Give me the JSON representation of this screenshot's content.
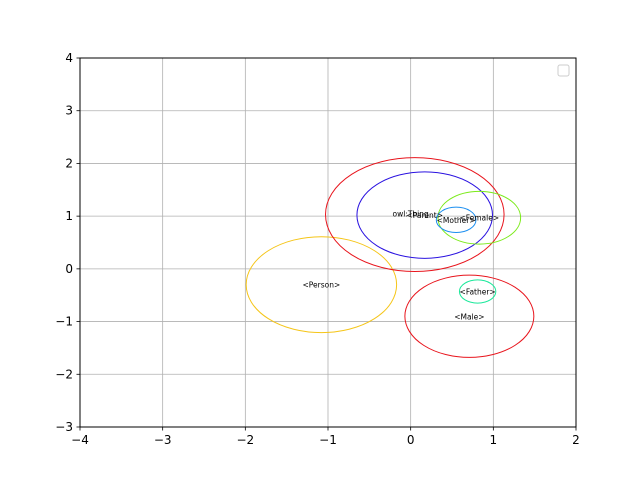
{
  "chart_data": {
    "type": "scatter",
    "title": "",
    "xlabel": "",
    "ylabel": "",
    "xlim": [
      -4,
      2
    ],
    "ylim": [
      -3,
      4
    ],
    "x_ticks": [
      "−4",
      "−3",
      "−2",
      "−1",
      "0",
      "1",
      "2"
    ],
    "y_ticks": [
      "−3",
      "−2",
      "−1",
      "0",
      "1",
      "2",
      "3",
      "4"
    ],
    "grid": true,
    "legend": {
      "placement": "top-right",
      "entries": []
    },
    "ellipses": [
      {
        "label": "<Person>",
        "cx": -1.08,
        "cy": -0.3,
        "rx": 0.91,
        "ry": 0.91,
        "color": "#f5c518"
      },
      {
        "label": "",
        "cx": 0.05,
        "cy": 1.03,
        "rx": 1.08,
        "ry": 1.08,
        "color": "#e8141c"
      },
      {
        "label": "<Parent>",
        "cx": 0.17,
        "cy": 1.02,
        "rx": 0.82,
        "ry": 0.82,
        "color": "#2a12e0"
      },
      {
        "label": "owl:Thing",
        "cx": 0.0,
        "cy": 1.05,
        "rx": 0.0,
        "ry": 0.0,
        "color": "#000000"
      },
      {
        "label": "<Female>",
        "cx": 0.83,
        "cy": 0.97,
        "rx": 0.5,
        "ry": 0.5,
        "color": "#7bea1a"
      },
      {
        "label": "<Mother>",
        "cx": 0.55,
        "cy": 0.93,
        "rx": 0.24,
        "ry": 0.24,
        "color": "#1a8ef0"
      },
      {
        "label": "<Male>",
        "cx": 0.71,
        "cy": -0.9,
        "rx": 0.78,
        "ry": 0.78,
        "color": "#e8141c"
      },
      {
        "label": "<Father>",
        "cx": 0.81,
        "cy": -0.43,
        "rx": 0.22,
        "ry": 0.22,
        "color": "#1ae89a"
      }
    ]
  }
}
